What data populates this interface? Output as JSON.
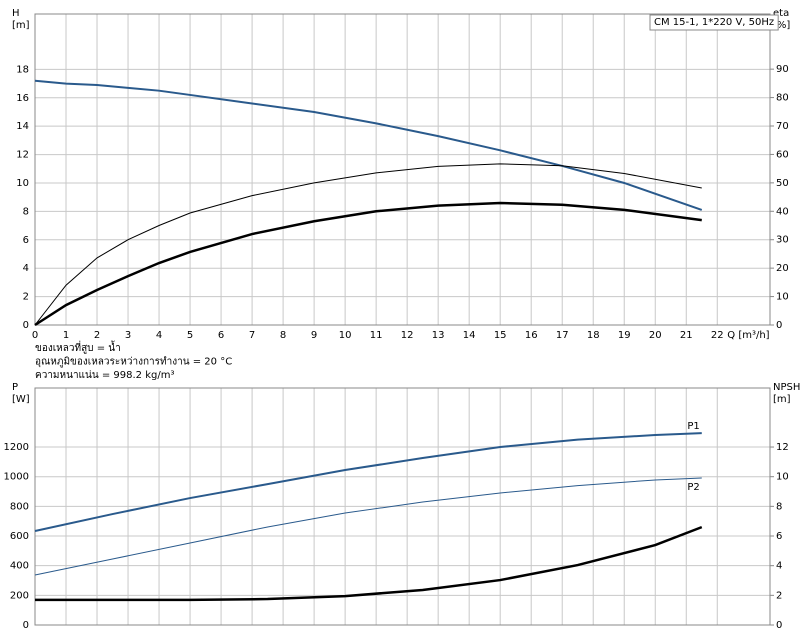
{
  "chart_data": [
    {
      "type": "line",
      "legend_title": "CM 15-1, 1*220 V, 50Hz",
      "ylabel": [
        "H",
        "[m]"
      ],
      "y2label": [
        "eta",
        "[%]"
      ],
      "xlabel": "Q [m³/h]",
      "notes": [
        "ของเหลวที่สูบ = น้ำ",
        "อุณหภูมิของเหลวระหว่างการทำงาน = 20 °C",
        "ความหนาแน่น = 998.2 kg/m³"
      ],
      "xlim": [
        0,
        23.7
      ],
      "xticks": [
        0,
        1,
        2,
        3,
        4,
        5,
        6,
        7,
        8,
        9,
        10,
        11,
        12,
        13,
        14,
        15,
        16,
        17,
        18,
        19,
        20,
        21,
        22
      ],
      "ylim": [
        0,
        21.9
      ],
      "yticks": [
        0,
        2,
        4,
        6,
        8,
        10,
        12,
        14,
        16,
        18
      ],
      "y2lim": [
        0,
        109.4
      ],
      "y2ticks": [
        0,
        10,
        20,
        30,
        40,
        50,
        60,
        70,
        80,
        90
      ],
      "grid": true,
      "x": [
        0,
        1,
        2,
        3,
        4,
        5,
        7,
        9,
        11,
        13,
        15,
        17,
        19,
        21.5
      ],
      "series": [
        {
          "color": "#2a5a8c",
          "width": 2,
          "values": [
            17.2,
            17.0,
            16.9,
            16.7,
            16.5,
            16.2,
            15.6,
            15.0,
            14.2,
            13.3,
            12.3,
            11.2,
            10.0,
            8.1
          ]
        },
        {
          "color": "#000000",
          "width": 1,
          "axis": "y2",
          "values": [
            0,
            14,
            23.6,
            30,
            35,
            39.4,
            45.5,
            50,
            53.5,
            55.8,
            56.7,
            56,
            53.3,
            48.2
          ]
        },
        {
          "color": "#000000",
          "width": 2.5,
          "axis": "y2",
          "values": [
            0,
            7,
            12.3,
            17.2,
            21.8,
            25.7,
            32,
            36.5,
            40,
            42,
            42.9,
            42.3,
            40.5,
            36.9
          ]
        }
      ]
    },
    {
      "type": "line",
      "ylabel": [
        "P",
        "[W]"
      ],
      "y2label": [
        "NPSH",
        "[m]"
      ],
      "ylim": [
        0,
        1598
      ],
      "yticks": [
        0,
        200,
        400,
        600,
        800,
        1000,
        1200
      ],
      "y2lim": [
        0,
        15.98
      ],
      "y2ticks": [
        0,
        2,
        4,
        6,
        8,
        10,
        12
      ],
      "grid": true,
      "x": [
        0,
        2.5,
        5,
        7.5,
        10,
        12.5,
        15,
        17.5,
        20,
        21.5
      ],
      "series": [
        {
          "name": "P1",
          "color": "#2a5a8c",
          "width": 2,
          "values": [
            634,
            748,
            856,
            950,
            1045,
            1126,
            1200,
            1250,
            1281,
            1294
          ]
        },
        {
          "name": "P2",
          "color": "#2a5a8c",
          "width": 1,
          "values": [
            337,
            445,
            553,
            661,
            755,
            829,
            890,
            940,
            978,
            991
          ]
        },
        {
          "color": "#000000",
          "width": 2.5,
          "axis": "y2",
          "values": [
            1.69,
            1.69,
            1.69,
            1.75,
            1.95,
            2.36,
            3.03,
            4.04,
            5.39,
            6.6
          ]
        }
      ]
    }
  ]
}
